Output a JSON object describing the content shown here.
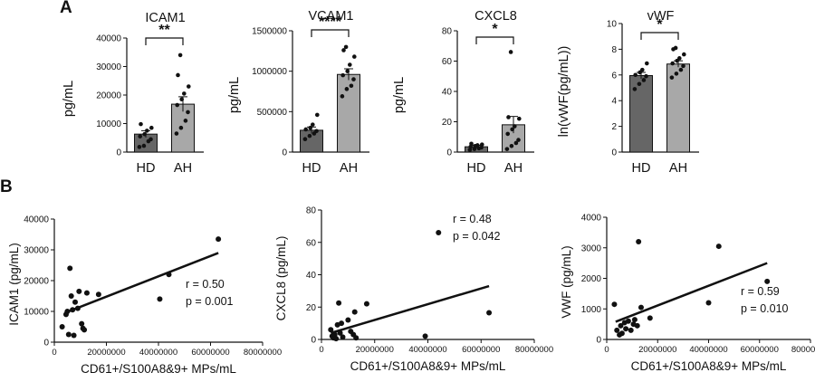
{
  "panel_labels": {
    "a": "A",
    "b": "B"
  },
  "colors": {
    "hd_bar": "#666666",
    "ah_bar": "#a8a8a8",
    "ink": "#111111"
  },
  "chart_data": [
    {
      "type": "bar",
      "title": "ICAM1",
      "ylabel": "pg/mL",
      "categories": [
        "HD",
        "AH"
      ],
      "values": [
        6300,
        16800
      ],
      "errors": [
        1200,
        2600
      ],
      "ylim": [
        0,
        40000
      ],
      "yticks": [
        0,
        10000,
        20000,
        30000,
        40000
      ],
      "yticklabels": [
        "0",
        "10000",
        "20000",
        "30000",
        "40000"
      ],
      "significance": "**",
      "points": [
        [
          1800,
          2200,
          3800,
          4500,
          5500,
          6300,
          7500,
          8500,
          9800
        ],
        [
          6500,
          8500,
          11000,
          14000,
          16500,
          18500,
          20500,
          23000,
          27000,
          34000
        ]
      ]
    },
    {
      "type": "bar",
      "title": "VCAM1",
      "ylabel": "pg/mL",
      "categories": [
        "HD",
        "AH"
      ],
      "values": [
        270000,
        960000
      ],
      "errors": [
        40000,
        70000
      ],
      "ylim": [
        0,
        1500000
      ],
      "yticks": [
        0,
        500000,
        1000000,
        1500000
      ],
      "yticklabels": [
        "0",
        "500000",
        "1000000",
        "1500000"
      ],
      "significance": "****",
      "points": [
        [
          160000,
          200000,
          230000,
          260000,
          280000,
          300000,
          340000,
          460000
        ],
        [
          690000,
          780000,
          820000,
          900000,
          950000,
          1000000,
          1080000,
          1180000,
          1260000,
          1300000
        ]
      ]
    },
    {
      "type": "bar",
      "title": "CXCL8",
      "ylabel": "pg/mL",
      "categories": [
        "HD",
        "AH"
      ],
      "values": [
        3.5,
        18
      ],
      "errors": [
        1,
        5.5
      ],
      "ylim": [
        0,
        80
      ],
      "yticks": [
        0,
        20,
        40,
        60,
        80
      ],
      "yticklabels": [
        "0",
        "20",
        "40",
        "60",
        "80"
      ],
      "significance": "*",
      "points": [
        [
          1.5,
          2,
          2.5,
          3,
          3.5,
          4,
          4.5,
          5,
          5.5
        ],
        [
          2,
          4,
          6,
          8,
          12,
          15,
          17,
          22,
          23,
          66
        ]
      ]
    },
    {
      "type": "bar",
      "title": "vWF",
      "ylabel": "ln(vWF(pg/mL))",
      "categories": [
        "HD",
        "AH"
      ],
      "values": [
        5.95,
        6.85
      ],
      "errors": [
        0.25,
        0.25
      ],
      "ylim": [
        0,
        10
      ],
      "yticks": [
        0,
        2,
        4,
        6,
        8,
        10
      ],
      "yticklabels": [
        "0",
        "2",
        "4",
        "6",
        "8",
        "10"
      ],
      "significance": "*",
      "points": [
        [
          4.9,
          5.3,
          5.6,
          5.9,
          6.0,
          6.2,
          6.4,
          6.9
        ],
        [
          5.8,
          6.1,
          6.4,
          6.7,
          6.9,
          7.1,
          7.3,
          7.6,
          8.0,
          8.1
        ]
      ]
    },
    {
      "type": "scatter",
      "ylabel": "ICAM1 (pg/mL)",
      "xlabel": "CD61+/S100A8&9+ MPs/mL",
      "xlim": [
        0,
        80000000
      ],
      "ylim": [
        0,
        40000
      ],
      "xticks": [
        0,
        20000000,
        40000000,
        60000000,
        80000000
      ],
      "xticklabels": [
        "0",
        "20000000",
        "40000000",
        "60000000",
        "80000000"
      ],
      "yticks": [
        0,
        10000,
        20000,
        30000,
        40000
      ],
      "yticklabels": [
        "0",
        "10000",
        "20000",
        "30000",
        "40000"
      ],
      "annotation": [
        "r = 0.50",
        "p = 0.001"
      ],
      "fit_line": [
        [
          4000000,
          9500
        ],
        [
          63000000,
          29000
        ]
      ],
      "points": [
        [
          3000000,
          5000
        ],
        [
          4500000,
          9000
        ],
        [
          5000000,
          10000
        ],
        [
          5500000,
          2500
        ],
        [
          6000000,
          24000
        ],
        [
          6500000,
          15000
        ],
        [
          7000000,
          10500
        ],
        [
          7500000,
          2200
        ],
        [
          8000000,
          13000
        ],
        [
          9000000,
          11000
        ],
        [
          9500000,
          16500
        ],
        [
          10500000,
          6000
        ],
        [
          11000000,
          4500
        ],
        [
          11500000,
          4000
        ],
        [
          12500000,
          16000
        ],
        [
          17000000,
          15500
        ],
        [
          40500000,
          14000
        ],
        [
          44000000,
          22000
        ],
        [
          63000000,
          33500
        ]
      ]
    },
    {
      "type": "scatter",
      "ylabel": "CXCL8 (pg/mL)",
      "xlabel": "CD61+/S100A8&9+ MPs/mL",
      "xlim": [
        0,
        80000000
      ],
      "ylim": [
        0,
        80
      ],
      "xticks": [
        0,
        20000000,
        40000000,
        60000000,
        80000000
      ],
      "xticklabels": [
        "0",
        "20000000",
        "40000000",
        "60000000",
        "80000000"
      ],
      "yticks": [
        0,
        20,
        40,
        60,
        80
      ],
      "yticklabels": [
        "0",
        "20",
        "40",
        "60",
        "80"
      ],
      "annotation": [
        "r = 0.48",
        "p = 0.042"
      ],
      "fit_line": [
        [
          3500000,
          4
        ],
        [
          63000000,
          33
        ]
      ],
      "points": [
        [
          3500000,
          6
        ],
        [
          4000000,
          2
        ],
        [
          4500000,
          1
        ],
        [
          5000000,
          3
        ],
        [
          5500000,
          0.5
        ],
        [
          6000000,
          9
        ],
        [
          6500000,
          22.5
        ],
        [
          7000000,
          4
        ],
        [
          7500000,
          10
        ],
        [
          8000000,
          1.5
        ],
        [
          10000000,
          12
        ],
        [
          11000000,
          5
        ],
        [
          12000000,
          3
        ],
        [
          12500000,
          17
        ],
        [
          13000000,
          1
        ],
        [
          17000000,
          22
        ],
        [
          39000000,
          2
        ],
        [
          44000000,
          66
        ],
        [
          63000000,
          16.5
        ]
      ]
    },
    {
      "type": "scatter",
      "ylabel": "VWF (pg/mL)",
      "xlabel": "CD61+/S100A8&9+ MPs/mL",
      "xlim": [
        0,
        80000000
      ],
      "ylim": [
        0,
        4000
      ],
      "xticks": [
        0,
        20000000,
        40000000,
        60000000,
        80000000
      ],
      "xticklabels": [
        "0",
        "20000000",
        "40000000",
        "60000000",
        "80000000"
      ],
      "yticks": [
        0,
        1000,
        2000,
        3000,
        4000
      ],
      "yticklabels": [
        "0",
        "1000",
        "2000",
        "3000",
        "4000"
      ],
      "annotation": [
        "r = 0.59",
        "p = 0.010"
      ],
      "fit_line": [
        [
          3500000,
          580
        ],
        [
          63000000,
          2500
        ]
      ],
      "points": [
        [
          3000000,
          1150
        ],
        [
          4000000,
          300
        ],
        [
          5000000,
          150
        ],
        [
          5500000,
          450
        ],
        [
          6000000,
          200
        ],
        [
          7000000,
          550
        ],
        [
          7500000,
          350
        ],
        [
          8500000,
          600
        ],
        [
          9500000,
          300
        ],
        [
          10500000,
          500
        ],
        [
          11000000,
          650
        ],
        [
          12000000,
          450
        ],
        [
          12500000,
          3200
        ],
        [
          13500000,
          1050
        ],
        [
          17000000,
          700
        ],
        [
          40000000,
          1200
        ],
        [
          44000000,
          3050
        ],
        [
          63000000,
          1900
        ]
      ]
    }
  ]
}
